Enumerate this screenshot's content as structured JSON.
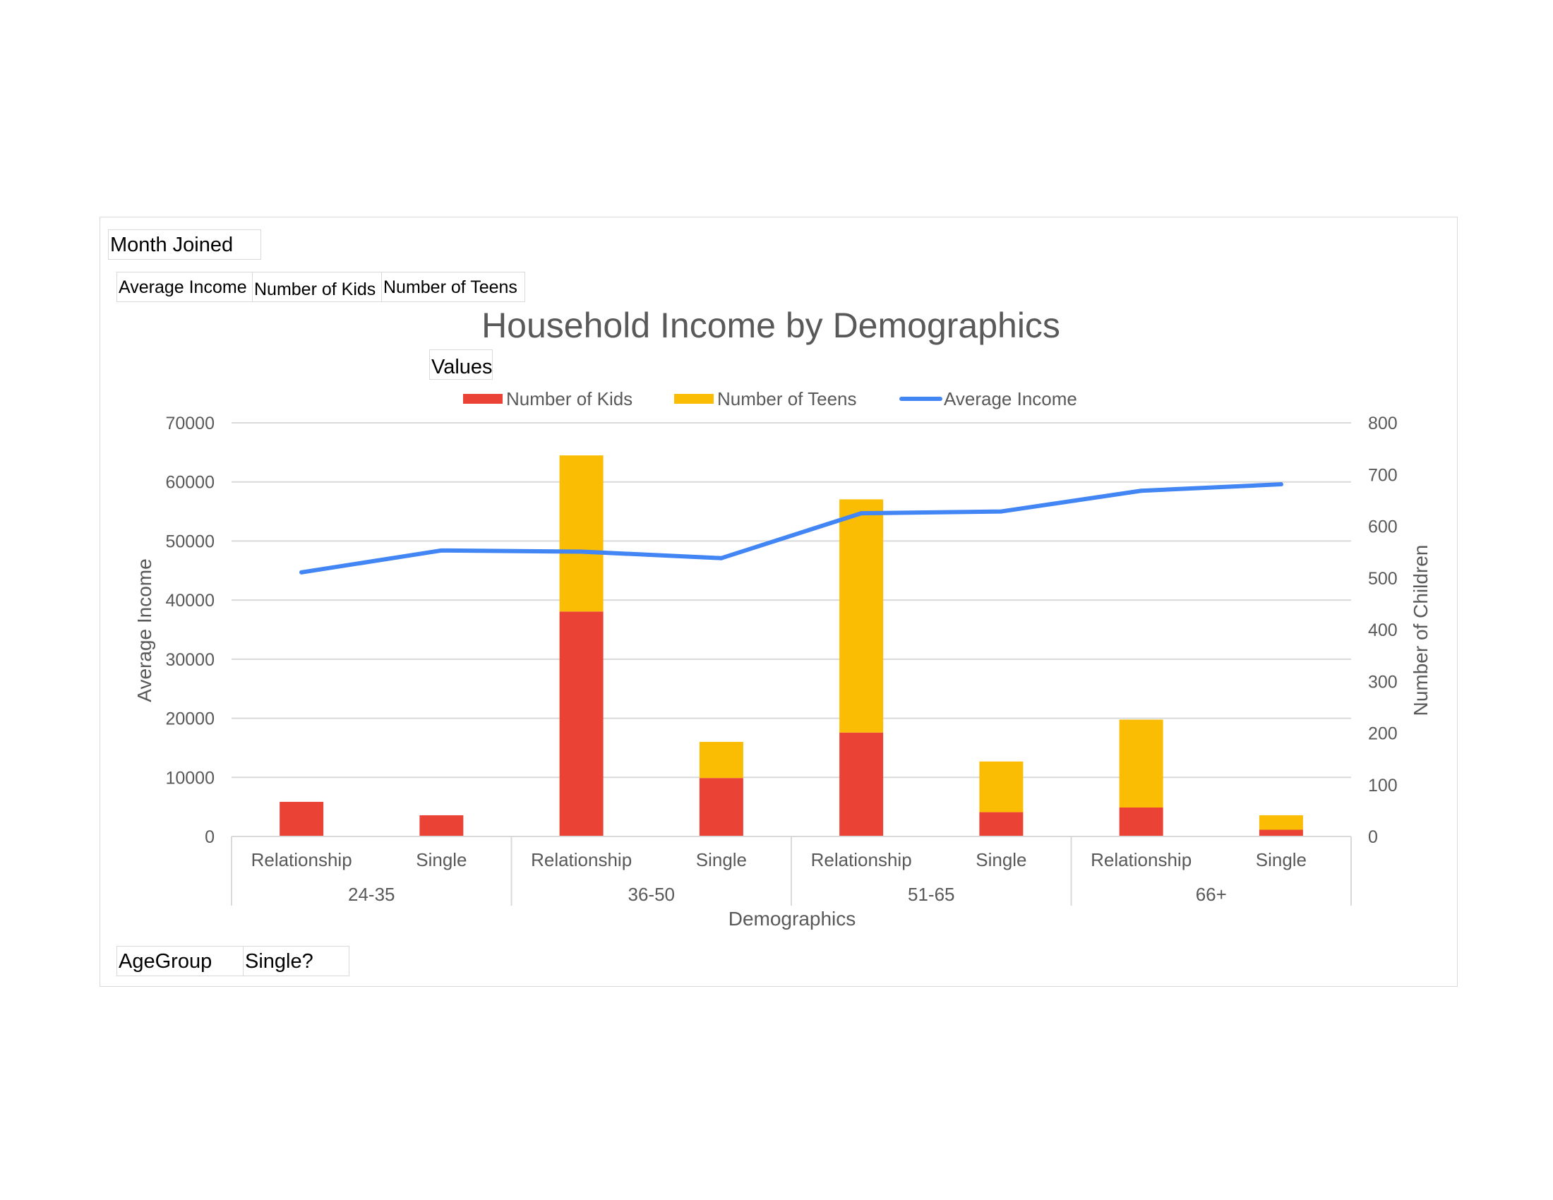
{
  "pivot": {
    "filter_fields": [
      "Month Joined"
    ],
    "value_fields": [
      "Average Income",
      "Number of Kids",
      "Number of Teens"
    ],
    "values_label": "Values",
    "axis_fields": [
      "AgeGroup",
      "Single?"
    ]
  },
  "colors": {
    "kids": "#ea4335",
    "teens": "#fbbc04",
    "income": "#4285f4",
    "grid": "#d9d9d9",
    "text": "#595959"
  },
  "chart_data": {
    "type": "bar",
    "stacked": true,
    "title": "Household Income by Demographics",
    "xlabel": "Demographics",
    "ylabel": "Average Income",
    "y2label": "Number of Children",
    "ylim": [
      0,
      70000
    ],
    "y2lim": [
      0,
      800
    ],
    "yticks": [
      "0",
      "10000",
      "20000",
      "30000",
      "40000",
      "50000",
      "60000",
      "70000"
    ],
    "y2ticks": [
      "0",
      "100",
      "200",
      "300",
      "400",
      "500",
      "600",
      "700",
      "800"
    ],
    "groups": [
      {
        "label": "24-35",
        "categories": [
          "Relationship",
          "Single"
        ]
      },
      {
        "label": "36-50",
        "categories": [
          "Relationship",
          "Single"
        ]
      },
      {
        "label": "51-65",
        "categories": [
          "Relationship",
          "Single"
        ]
      },
      {
        "label": "66+",
        "categories": [
          "Relationship",
          "Single"
        ]
      }
    ],
    "legend_position": "top",
    "series": [
      {
        "name": "Number of Kids",
        "type": "bar",
        "axis": "secondary",
        "values": [
          67,
          41,
          435,
          113,
          201,
          47,
          56,
          13
        ]
      },
      {
        "name": "Number of Teens",
        "type": "bar",
        "axis": "secondary",
        "values": [
          0,
          0,
          302,
          70,
          451,
          98,
          170,
          28
        ]
      },
      {
        "name": "Average Income",
        "type": "line",
        "axis": "primary",
        "values": [
          44700,
          48400,
          48200,
          47100,
          54700,
          55000,
          58500,
          59600
        ]
      }
    ]
  }
}
